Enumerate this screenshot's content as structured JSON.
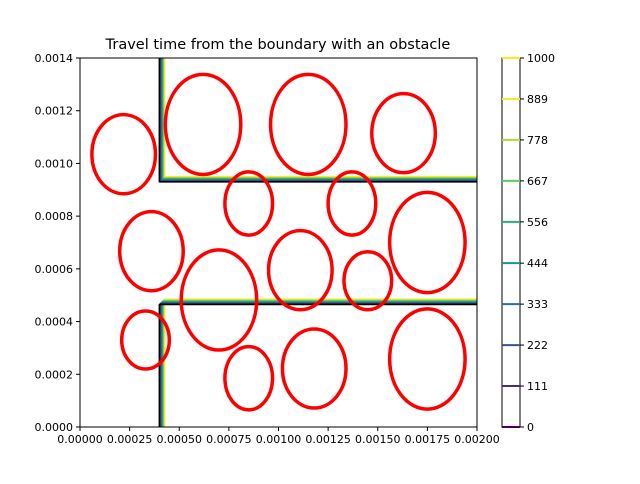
{
  "chart_data": {
    "type": "contour",
    "title": "Travel time from the boundary with an obstacle",
    "xlabel": "",
    "ylabel": "",
    "xlim": [
      0,
      0.002
    ],
    "ylim": [
      0,
      0.0014
    ],
    "xticks": [
      0,
      0.00025,
      0.0005,
      0.00075,
      0.001,
      0.00125,
      0.0015,
      0.00175,
      0.002
    ],
    "xtick_labels": [
      "0.00000",
      "0.00025",
      "0.00050",
      "0.00075",
      "0.00100",
      "0.00125",
      "0.00150",
      "0.00175",
      "0.00200"
    ],
    "yticks": [
      0,
      0.0002,
      0.0004,
      0.0006,
      0.0008,
      0.001,
      0.0012,
      0.0014
    ],
    "ytick_labels": [
      "0.0000",
      "0.0002",
      "0.0004",
      "0.0006",
      "0.0008",
      "0.0010",
      "0.0012",
      "0.0014"
    ],
    "grid": false,
    "colorbar": {
      "levels": [
        0,
        111,
        222,
        333,
        444,
        556,
        667,
        778,
        889,
        1000
      ],
      "labels": [
        "0",
        "111",
        "222",
        "333",
        "444",
        "556",
        "667",
        "778",
        "889",
        "1000"
      ],
      "colors": [
        "#440154",
        "#472d7b",
        "#3b528b",
        "#2c728e",
        "#21918c",
        "#28ae80",
        "#5ec962",
        "#addc30",
        "#fde725",
        "#fde725"
      ]
    },
    "obstacle_color": "#ff0000",
    "walls": [
      {
        "name": "vertical-wall",
        "x": [
          0.0004,
          0.0004
        ],
        "y": [
          0.00093,
          0.0014
        ]
      },
      {
        "name": "upper-wall",
        "x": [
          0.0004,
          0.002
        ],
        "y": [
          0.00093,
          0.00093
        ]
      },
      {
        "name": "lower-wall",
        "x": [
          0.0004,
          0.002
        ],
        "y": [
          0.000465,
          0.000465
        ]
      },
      {
        "name": "bottom-wall",
        "x": [
          0.0004,
          0.0004
        ],
        "y": [
          0,
          0.000465
        ]
      }
    ],
    "obstacles": [
      {
        "cx": 0.00022,
        "cy": 0.001035,
        "rx": 0.00016,
        "ry": 0.00015
      },
      {
        "cx": 0.00062,
        "cy": 0.001148,
        "rx": 0.00019,
        "ry": 0.00019
      },
      {
        "cx": 0.00115,
        "cy": 0.001148,
        "rx": 0.00019,
        "ry": 0.00019
      },
      {
        "cx": 0.00163,
        "cy": 0.001115,
        "rx": 0.00016,
        "ry": 0.00015
      },
      {
        "cx": 0.00085,
        "cy": 0.000848,
        "rx": 0.00012,
        "ry": 0.00012
      },
      {
        "cx": 0.00137,
        "cy": 0.000848,
        "rx": 0.00012,
        "ry": 0.00012
      },
      {
        "cx": 0.00036,
        "cy": 0.000667,
        "rx": 0.00016,
        "ry": 0.00015
      },
      {
        "cx": 0.00175,
        "cy": 0.0007,
        "rx": 0.00019,
        "ry": 0.00019
      },
      {
        "cx": 0.00111,
        "cy": 0.000595,
        "rx": 0.00016,
        "ry": 0.00015
      },
      {
        "cx": 0.00145,
        "cy": 0.000555,
        "rx": 0.00012,
        "ry": 0.00011
      },
      {
        "cx": 0.0007,
        "cy": 0.000482,
        "rx": 0.00019,
        "ry": 0.00019
      },
      {
        "cx": 0.00033,
        "cy": 0.00033,
        "rx": 0.00012,
        "ry": 0.00011
      },
      {
        "cx": 0.00085,
        "cy": 0.000185,
        "rx": 0.00012,
        "ry": 0.00012
      },
      {
        "cx": 0.00118,
        "cy": 0.000222,
        "rx": 0.00016,
        "ry": 0.00015
      },
      {
        "cx": 0.00175,
        "cy": 0.000258,
        "rx": 0.00019,
        "ry": 0.00019
      }
    ]
  }
}
